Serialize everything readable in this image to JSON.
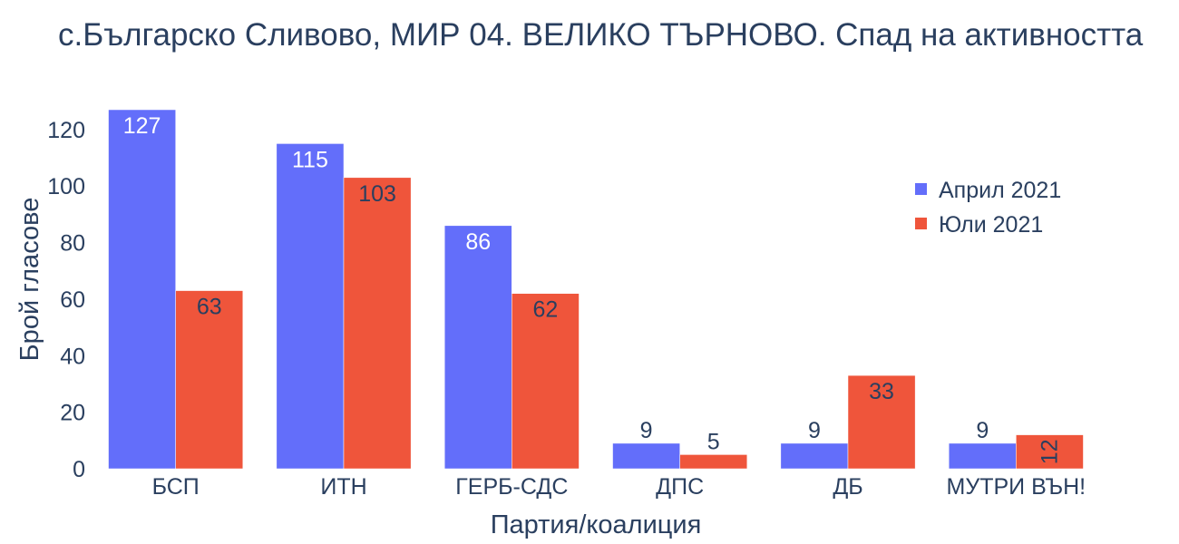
{
  "chart_data": {
    "type": "bar",
    "title": "с.Българско Сливово, МИР 04. ВЕЛИКО ТЪРНОВО. Спад на активността",
    "xlabel": "Партия/коалиция",
    "ylabel": "Брой гласове",
    "categories": [
      "БСП",
      "ИТН",
      "ГЕРБ-СДС",
      "ДПС",
      "ДБ",
      "МУТРИ ВЪН!"
    ],
    "series": [
      {
        "name": "Април 2021",
        "color": "#636efa",
        "values": [
          127,
          115,
          86,
          9,
          9,
          9
        ]
      },
      {
        "name": "Юли 2021",
        "color": "#ef553b",
        "values": [
          63,
          103,
          62,
          5,
          33,
          12
        ]
      }
    ],
    "ylim": [
      0,
      127
    ],
    "yticks": [
      0,
      20,
      40,
      60,
      80,
      100,
      120
    ],
    "grid": false,
    "legend_position": "top-right"
  }
}
